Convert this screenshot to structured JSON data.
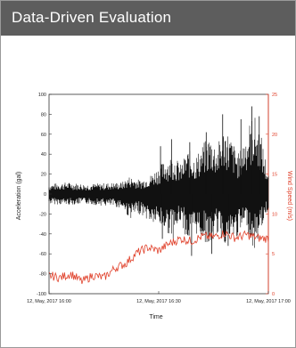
{
  "header": {
    "title": "Data-Driven Evaluation"
  },
  "colors": {
    "header_bg": "#5d5d5d",
    "accel": "#111111",
    "wind": "#e0402a"
  },
  "chart_data": {
    "type": "line",
    "xlabel": "Time",
    "x_ticks": [
      "12, May, 2017 16:00",
      "12, May, 2017 16:30",
      "12, May, 2017 17:00"
    ],
    "x_range_minutes": [
      0,
      60
    ],
    "grid": false,
    "legend": "none",
    "series": [
      {
        "axis": "left",
        "ylabel": "Acceleration (gal)",
        "ylim": [
          -100,
          100
        ],
        "y_ticks": [
          -100,
          -80,
          -60,
          -40,
          -20,
          0,
          20,
          40,
          60,
          80,
          100
        ],
        "color": "#111111",
        "envelope": {
          "minutes": [
            0,
            5,
            10,
            15,
            20,
            22,
            25,
            28,
            30,
            32,
            34,
            36,
            38,
            40,
            42,
            44,
            46,
            48,
            50,
            52,
            54,
            56,
            58,
            60
          ],
          "upper": [
            10,
            12,
            10,
            11,
            12,
            18,
            14,
            20,
            28,
            35,
            40,
            30,
            45,
            38,
            50,
            60,
            48,
            70,
            55,
            40,
            65,
            82,
            60,
            20
          ],
          "lower": [
            -10,
            -11,
            -10,
            -12,
            -14,
            -25,
            -20,
            -30,
            -32,
            -38,
            -45,
            -28,
            -50,
            -40,
            -45,
            -55,
            -40,
            -50,
            -48,
            -42,
            -30,
            -60,
            -35,
            -15
          ]
        },
        "spikes": [
          {
            "minute": 30.5,
            "value": 48
          },
          {
            "minute": 33.5,
            "value": 55
          },
          {
            "minute": 38.5,
            "value": 52
          },
          {
            "minute": 43.0,
            "value": 62
          },
          {
            "minute": 47.5,
            "value": 80
          },
          {
            "minute": 52.5,
            "value": 75
          },
          {
            "minute": 55.5,
            "value": 88
          },
          {
            "minute": 57.5,
            "value": 78
          },
          {
            "minute": 31.0,
            "value": -45
          },
          {
            "minute": 39.0,
            "value": -62
          },
          {
            "minute": 44.5,
            "value": -60
          },
          {
            "minute": 49.0,
            "value": -52
          }
        ]
      },
      {
        "axis": "right",
        "ylabel": "Wind Speed (m/s)",
        "ylim": [
          0,
          25
        ],
        "y_ticks": [
          0,
          5,
          10,
          15,
          20,
          25
        ],
        "color": "#e0402a",
        "x": [
          0,
          3,
          6,
          9,
          12,
          15,
          18,
          21,
          24,
          27,
          30,
          33,
          36,
          39,
          42,
          45,
          48,
          51,
          54,
          57,
          60
        ],
        "values": [
          2.3,
          2.0,
          2.5,
          1.5,
          2.3,
          2.0,
          3.2,
          3.8,
          5.1,
          5.8,
          5.4,
          6.3,
          6.9,
          6.6,
          7.2,
          7.1,
          7.6,
          7.0,
          7.4,
          7.0,
          6.9
        ]
      }
    ]
  }
}
